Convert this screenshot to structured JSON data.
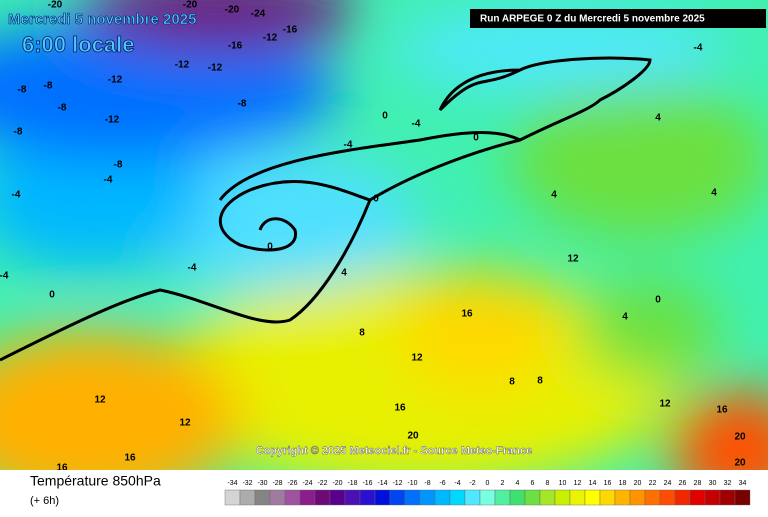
{
  "header": {
    "date": "Mercredi 5 novembre 2025",
    "time": "6:00 locale",
    "run": "Run ARPEGE 0 Z du Mercredi 5 novembre 2025"
  },
  "copyright": "Copyright © 2025 Meteociel.fr - Source Meteo-France",
  "contour_labels": [
    -20,
    -20,
    -24,
    -20,
    -16,
    -12,
    -16,
    -12,
    -12,
    -12,
    -8,
    -8,
    -8,
    -8,
    -12,
    -8,
    -8,
    -4,
    -4,
    -4,
    -4,
    -4,
    -4,
    -4,
    0,
    0,
    0,
    0,
    0,
    0,
    4,
    4,
    4,
    4,
    4,
    8,
    8,
    8,
    12,
    12,
    12,
    12,
    12,
    16,
    16,
    16,
    16,
    16,
    20,
    20,
    20
  ],
  "footer": {
    "title": "Température 850hPa",
    "step": "(+ 6h)"
  },
  "scale": {
    "values": [
      -34,
      -32,
      -30,
      -28,
      -26,
      -24,
      -22,
      -20,
      -18,
      -16,
      -14,
      -12,
      -10,
      -8,
      -6,
      -4,
      -2,
      0,
      2,
      4,
      6,
      8,
      10,
      12,
      14,
      16,
      18,
      20,
      22,
      24,
      26,
      28,
      30,
      32,
      34
    ],
    "colors": [
      "#d4d4d4",
      "#acacac",
      "#848484",
      "#a07aa0",
      "#a052a0",
      "#8c1e8c",
      "#6e0a78",
      "#58008c",
      "#4a10b4",
      "#2a10d0",
      "#0010dc",
      "#0046f0",
      "#0070ff",
      "#0096ff",
      "#00b8ff",
      "#00d8ff",
      "#50e8ff",
      "#78ffe0",
      "#50f0a0",
      "#40e070",
      "#6ce040",
      "#a4e628",
      "#c8f000",
      "#e8f400",
      "#ffff00",
      "#ffd800",
      "#ffb400",
      "#ff9400",
      "#ff7000",
      "#ff4c00",
      "#f02800",
      "#e00000",
      "#c40000",
      "#a00000",
      "#780000"
    ]
  }
}
